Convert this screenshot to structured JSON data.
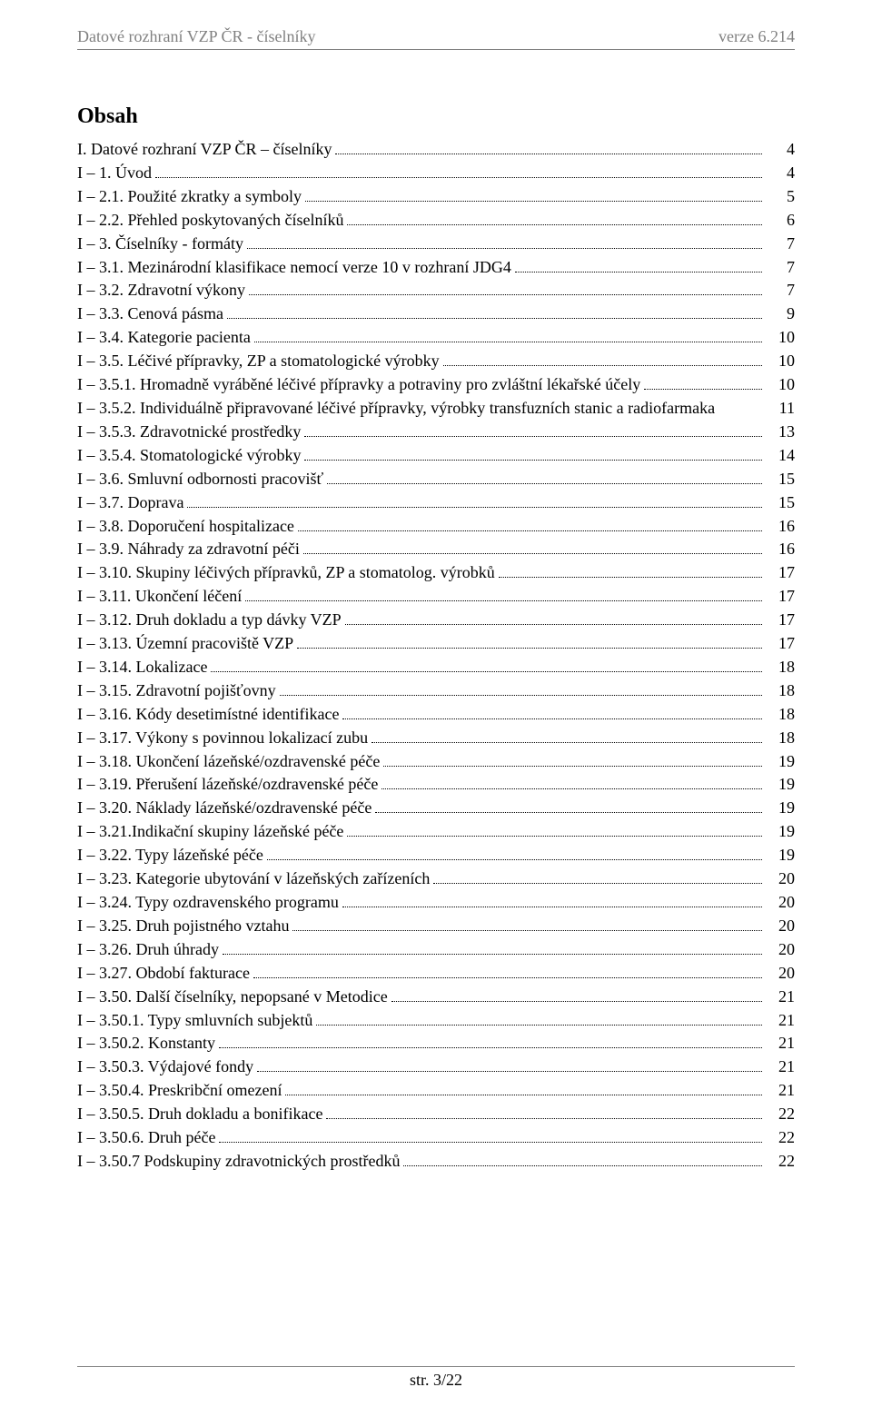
{
  "header": {
    "left": "Datové rozhraní VZP ČR  -  číselníky",
    "right": "verze 6.214"
  },
  "title": "Obsah",
  "toc": [
    {
      "label": "I. Datové rozhraní VZP ČR – číselníky",
      "page": "4",
      "dots": true
    },
    {
      "label": "I – 1. Úvod",
      "page": "4",
      "dots": true
    },
    {
      "label": "I – 2.1. Použité zkratky a symboly",
      "page": "5",
      "dots": true
    },
    {
      "label": "I – 2.2. Přehled poskytovaných číselníků",
      "page": "6",
      "dots": true
    },
    {
      "label": "I – 3. Číselníky - formáty",
      "page": "7",
      "dots": true
    },
    {
      "label": "I – 3.1. Mezinárodní klasifikace nemocí verze 10 v rozhraní JDG4",
      "page": "7",
      "dots": true
    },
    {
      "label": "I – 3.2. Zdravotní výkony",
      "page": "7",
      "dots": true
    },
    {
      "label": "I – 3.3. Cenová pásma",
      "page": "9",
      "dots": true
    },
    {
      "label": "I – 3.4. Kategorie pacienta",
      "page": "10",
      "dots": true
    },
    {
      "label": "I – 3.5. Léčivé přípravky, ZP a stomatologické výrobky",
      "page": "10",
      "dots": true
    },
    {
      "label": "I – 3.5.1. Hromadně vyráběné léčivé přípravky  a potraviny pro zvláštní lékařské účely",
      "page": "10",
      "dots": true
    },
    {
      "label": "I – 3.5.2. Individuálně připravované léčivé přípravky, výrobky transfuzních stanic a radiofarmaka",
      "page": "11",
      "dots": false
    },
    {
      "label": "I – 3.5.3. Zdravotnické prostředky",
      "page": "13",
      "dots": true
    },
    {
      "label": "I – 3.5.4. Stomatologické výrobky",
      "page": "14",
      "dots": true
    },
    {
      "label": "I – 3.6. Smluvní odbornosti pracovišť",
      "page": "15",
      "dots": true
    },
    {
      "label": "I – 3.7. Doprava",
      "page": "15",
      "dots": true
    },
    {
      "label": "I – 3.8. Doporučení hospitalizace",
      "page": "16",
      "dots": true
    },
    {
      "label": "I – 3.9. Náhrady za zdravotní péči",
      "page": "16",
      "dots": true
    },
    {
      "label": "I – 3.10. Skupiny léčivých přípravků, ZP a stomatolog. výrobků",
      "page": "17",
      "dots": true
    },
    {
      "label": "I – 3.11. Ukončení léčení",
      "page": "17",
      "dots": true
    },
    {
      "label": "I – 3.12. Druh dokladu a typ dávky VZP",
      "page": "17",
      "dots": true
    },
    {
      "label": "I – 3.13. Územní pracoviště VZP",
      "page": "17",
      "dots": true
    },
    {
      "label": "I – 3.14. Lokalizace",
      "page": "18",
      "dots": true
    },
    {
      "label": "I – 3.15. Zdravotní pojišťovny",
      "page": "18",
      "dots": true
    },
    {
      "label": "I – 3.16. Kódy desetimístné identifikace",
      "page": "18",
      "dots": true
    },
    {
      "label": "I – 3.17. Výkony s povinnou lokalizací zubu",
      "page": "18",
      "dots": true
    },
    {
      "label": "I – 3.18. Ukončení lázeňské/ozdravenské péče",
      "page": "19",
      "dots": true
    },
    {
      "label": "I – 3.19. Přerušení lázeňské/ozdravenské péče",
      "page": "19",
      "dots": true
    },
    {
      "label": "I – 3.20. Náklady lázeňské/ozdravenské péče",
      "page": "19",
      "dots": true
    },
    {
      "label": "I – 3.21.Indikační skupiny lázeňské péče",
      "page": "19",
      "dots": true
    },
    {
      "label": "I – 3.22. Typy lázeňské péče",
      "page": "19",
      "dots": true
    },
    {
      "label": "I – 3.23. Kategorie ubytování v lázeňských zařízeních",
      "page": "20",
      "dots": true
    },
    {
      "label": "I – 3.24. Typy ozdravenského programu",
      "page": "20",
      "dots": true
    },
    {
      "label": "I – 3.25. Druh pojistného vztahu",
      "page": "20",
      "dots": true
    },
    {
      "label": "I – 3.26. Druh úhrady",
      "page": "20",
      "dots": true
    },
    {
      "label": "I – 3.27. Období fakturace",
      "page": "20",
      "dots": true
    },
    {
      "label": "I – 3.50. Další číselníky, nepopsané v Metodice",
      "page": "21",
      "dots": true
    },
    {
      "label": "I – 3.50.1. Typy smluvních subjektů",
      "page": "21",
      "dots": true
    },
    {
      "label": "I – 3.50.2. Konstanty",
      "page": "21",
      "dots": true
    },
    {
      "label": "I – 3.50.3. Výdajové fondy",
      "page": "21",
      "dots": true
    },
    {
      "label": "I – 3.50.4. Preskribční omezení",
      "page": "21",
      "dots": true
    },
    {
      "label": "I – 3.50.5. Druh dokladu a bonifikace",
      "page": "22",
      "dots": true
    },
    {
      "label": "I – 3.50.6. Druh péče",
      "page": "22",
      "dots": true
    },
    {
      "label": "I – 3.50.7 Podskupiny zdravotnických prostředků",
      "page": "22",
      "dots": true
    }
  ],
  "footer": "str. 3/22"
}
